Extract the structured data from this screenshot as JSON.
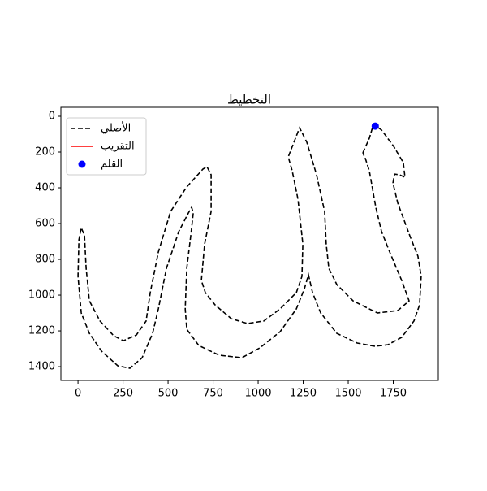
{
  "chart_data": {
    "type": "line",
    "title": "التخطيط",
    "xlim": [
      -95,
      2000
    ],
    "ylim": [
      1477,
      -50
    ],
    "xticks": [
      0,
      250,
      500,
      750,
      1000,
      1250,
      1500,
      1750
    ],
    "yticks": [
      0,
      200,
      400,
      600,
      800,
      1000,
      1200,
      1400
    ],
    "legend": "upper left",
    "series": [
      {
        "name": "الأصلي",
        "color": "#000000",
        "style": "dashed",
        "x": [
          1581,
          1617,
          1640,
          1685,
          1752,
          1806,
          1815,
          1784,
          1757,
          1748,
          1775,
          1842,
          1887,
          1905,
          1896,
          1865,
          1797,
          1721,
          1649,
          1550,
          1437,
          1347,
          1302,
          1279,
          1257,
          1212,
          1122,
          1009,
          910,
          784,
          671,
          604,
          595,
          604,
          626,
          640,
          631,
          613,
          559,
          491,
          446,
          414,
          356,
          288,
          221,
          131,
          63,
          18,
          0,
          5,
          18,
          36,
          45,
          63,
          122,
          198,
          252,
          324,
          378,
          401,
          446,
          514,
          604,
          694,
          716,
          739,
          739,
          703,
          685,
          707,
          761,
          851,
          941,
          1032,
          1122,
          1212,
          1243,
          1248,
          1221,
          1189,
          1167,
          1230,
          1270,
          1324,
          1369,
          1378,
          1392,
          1437,
          1527,
          1662,
          1775,
          1838,
          1797,
          1730,
          1685,
          1653,
          1617,
          1595,
          1581
        ],
        "y": [
          205,
          123,
          45,
          77,
          168,
          259,
          341,
          327,
          323,
          373,
          486,
          668,
          782,
          895,
          1055,
          1145,
          1236,
          1277,
          1286,
          1268,
          1214,
          1100,
          986,
          886,
          964,
          1077,
          1205,
          1295,
          1350,
          1336,
          1282,
          1191,
          1077,
          850,
          668,
          541,
          509,
          541,
          645,
          850,
          1077,
          1214,
          1350,
          1409,
          1395,
          1314,
          1214,
          1100,
          895,
          691,
          623,
          668,
          850,
          1032,
          1145,
          1227,
          1255,
          1223,
          1145,
          986,
          759,
          532,
          395,
          295,
          282,
          327,
          532,
          714,
          918,
          986,
          1055,
          1132,
          1159,
          1145,
          1077,
          986,
          895,
          714,
          464,
          305,
          227,
          64,
          145,
          327,
          532,
          714,
          850,
          941,
          1032,
          1100,
          1086,
          1032,
          918,
          759,
          645,
          509,
          305,
          236,
          205
        ]
      },
      {
        "name": "التقريب",
        "color": "#ff0000",
        "style": "solid",
        "x": [],
        "y": []
      },
      {
        "name": "القلم",
        "color": "#0000ff",
        "style": "marker",
        "x": [
          1650
        ],
        "y": [
          55
        ]
      }
    ]
  }
}
